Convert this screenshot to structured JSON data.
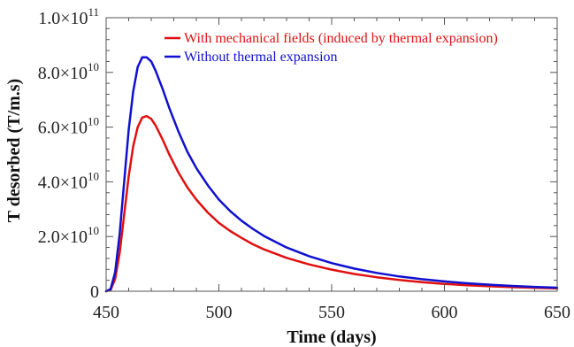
{
  "chart_data": {
    "type": "line",
    "xlabel": "Time (days)",
    "ylabel": "T desorbed (T/m.s)",
    "xlim": [
      450,
      650
    ],
    "ylim": [
      0,
      100000000000
    ],
    "x_ticks": [
      450,
      500,
      550,
      600,
      650
    ],
    "x_tick_labels": [
      "450",
      "500",
      "550",
      "600",
      "650"
    ],
    "y_ticks": [
      0,
      20000000000,
      40000000000,
      60000000000,
      80000000000,
      100000000000
    ],
    "y_tick_labels": [
      {
        "mantissa": "0",
        "exponent": ""
      },
      {
        "mantissa": "2.0×10",
        "exponent": "10"
      },
      {
        "mantissa": "4.0×10",
        "exponent": "10"
      },
      {
        "mantissa": "6.0×10",
        "exponent": "10"
      },
      {
        "mantissa": "8.0×10",
        "exponent": "10"
      },
      {
        "mantissa": "1.0×10",
        "exponent": "11"
      }
    ],
    "legend_position": "top-right",
    "grid": false,
    "x": [
      450,
      452,
      454,
      456,
      458,
      460,
      462,
      464,
      466,
      468,
      470,
      472,
      475,
      478,
      482,
      486,
      490,
      495,
      500,
      505,
      510,
      515,
      520,
      530,
      540,
      550,
      560,
      570,
      580,
      590,
      600,
      610,
      620,
      630,
      640,
      650
    ],
    "series": [
      {
        "name": "With mechanical fields (induced by thermal expansion)",
        "color": "#e01010",
        "values": [
          0,
          500000000.0,
          4500000000.0,
          14000000000.0,
          28000000000.0,
          42000000000.0,
          53000000000.0,
          60000000000.0,
          63500000000.0,
          64000000000.0,
          63000000000.0,
          60500000000.0,
          55500000000.0,
          50000000000.0,
          43500000000.0,
          38000000000.0,
          33500000000.0,
          28800000000.0,
          25000000000.0,
          22000000000.0,
          19500000000.0,
          17200000000.0,
          15300000000.0,
          12200000000.0,
          9800000000.0,
          7900000000.0,
          6300000000.0,
          5100000000.0,
          4100000000.0,
          3300000000.0,
          2700000000.0,
          2200000000.0,
          1800000000.0,
          1500000000.0,
          1250000000.0,
          1050000000.0
        ]
      },
      {
        "name": "Without thermal expansion",
        "color": "#1010d0",
        "values": [
          0,
          800000000.0,
          7000000000.0,
          21000000000.0,
          40000000000.0,
          59000000000.0,
          73000000000.0,
          82000000000.0,
          85500000000.0,
          85500000000.0,
          84000000000.0,
          80500000000.0,
          74000000000.0,
          67000000000.0,
          58500000000.0,
          51000000000.0,
          45000000000.0,
          38800000000.0,
          33500000000.0,
          29300000000.0,
          25800000000.0,
          22800000000.0,
          20200000000.0,
          16000000000.0,
          12800000000.0,
          10300000000.0,
          8300000000.0,
          6700000000.0,
          5400000000.0,
          4400000000.0,
          3600000000.0,
          2900000000.0,
          2400000000.0,
          1950000000.0,
          1600000000.0,
          1300000000.0
        ]
      }
    ]
  }
}
